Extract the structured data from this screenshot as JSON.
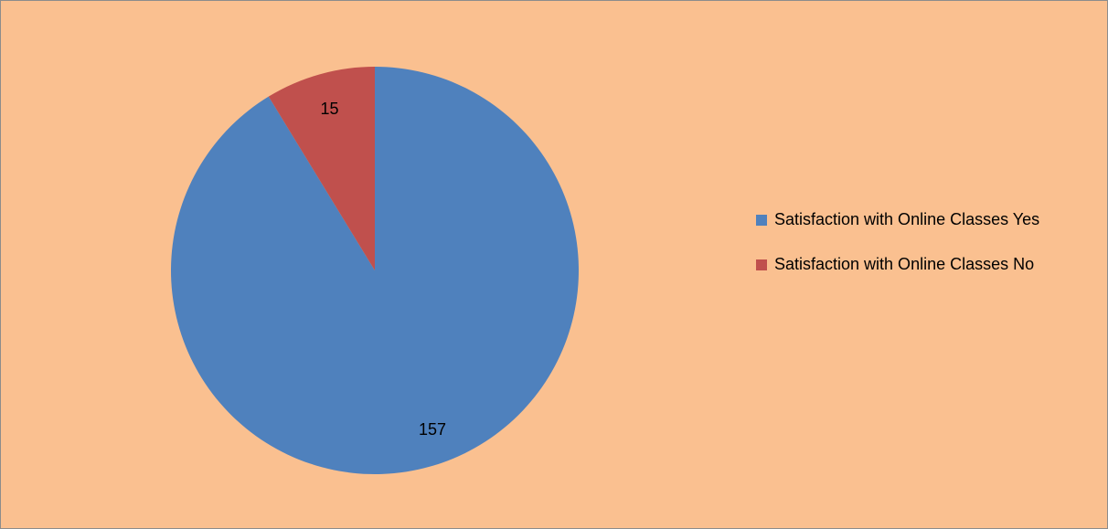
{
  "chart_data": {
    "type": "pie",
    "title": "",
    "background_color": "#FAC090",
    "categories": [
      "Satisfaction with Online Classes Yes",
      "Satisfaction with Online Classes No"
    ],
    "values": [
      157,
      15
    ],
    "data_labels": [
      "157",
      "15"
    ],
    "colors": [
      "#4F81BD",
      "#C0504D"
    ],
    "start_angle_deg": 0,
    "direction": "clockwise",
    "legend_position": "right",
    "legend": [
      {
        "label": "Satisfaction with Online Classes Yes",
        "color": "#4F81BD"
      },
      {
        "label": "Satisfaction with Online Classes No",
        "color": "#C0504D"
      }
    ]
  }
}
